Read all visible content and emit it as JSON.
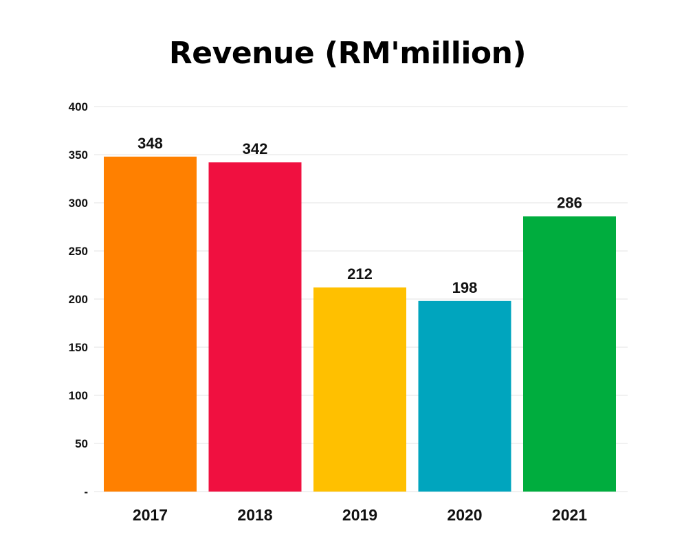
{
  "chart_data": {
    "type": "bar",
    "title": "Revenue (RM'million)",
    "xlabel": "",
    "ylabel": "",
    "categories": [
      "2017",
      "2018",
      "2019",
      "2020",
      "2021"
    ],
    "values": [
      348,
      342,
      212,
      198,
      286
    ],
    "data_labels": [
      "348",
      "342",
      "212",
      "198",
      "286"
    ],
    "colors": [
      "#FF8000",
      "#F01040",
      "#FFC000",
      "#00A5BE",
      "#00AD3E"
    ],
    "ylim": [
      0,
      400
    ],
    "y_ticks": [
      {
        "value": 0,
        "label": "-"
      },
      {
        "value": 50,
        "label": "50"
      },
      {
        "value": 100,
        "label": "100"
      },
      {
        "value": 150,
        "label": "150"
      },
      {
        "value": 200,
        "label": "200"
      },
      {
        "value": 250,
        "label": "250"
      },
      {
        "value": 300,
        "label": "300"
      },
      {
        "value": 350,
        "label": "350"
      },
      {
        "value": 400,
        "label": "400"
      }
    ],
    "grid": true
  }
}
